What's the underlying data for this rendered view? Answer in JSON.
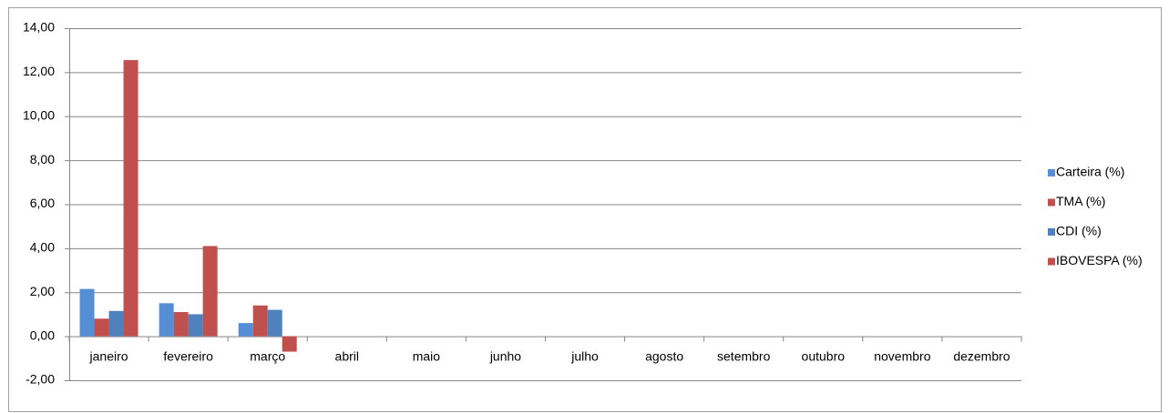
{
  "chart_data": {
    "type": "bar",
    "categories": [
      "janeiro",
      "fevereiro",
      "março",
      "abril",
      "maio",
      "junho",
      "julho",
      "agosto",
      "setembro",
      "outubro",
      "novembro",
      "dezembro"
    ],
    "series": [
      {
        "name": "Carteira (%)",
        "color": "#558ed5",
        "values": [
          2.15,
          1.5,
          0.6,
          null,
          null,
          null,
          null,
          null,
          null,
          null,
          null,
          null
        ]
      },
      {
        "name": "TMA (%)",
        "color": "#c0504d",
        "values": [
          0.8,
          1.1,
          1.4,
          null,
          null,
          null,
          null,
          null,
          null,
          null,
          null,
          null
        ]
      },
      {
        "name": "CDI (%)",
        "color": "#4f81bd",
        "values": [
          1.15,
          1.0,
          1.2,
          null,
          null,
          null,
          null,
          null,
          null,
          null,
          null,
          null
        ]
      },
      {
        "name": "IBOVESPA (%)",
        "color": "#c0504d",
        "values": [
          12.55,
          4.1,
          -0.7,
          null,
          null,
          null,
          null,
          null,
          null,
          null,
          null,
          null
        ]
      }
    ],
    "ylim": [
      -2,
      14
    ],
    "yticks": [
      {
        "value": -2,
        "label": "-2,00"
      },
      {
        "value": 0,
        "label": "0,00"
      },
      {
        "value": 2,
        "label": "2,00"
      },
      {
        "value": 4,
        "label": "4,00"
      },
      {
        "value": 6,
        "label": "6,00"
      },
      {
        "value": 8,
        "label": "8,00"
      },
      {
        "value": 10,
        "label": "10,00"
      },
      {
        "value": 12,
        "label": "12,00"
      },
      {
        "value": 14,
        "label": "14,00"
      }
    ],
    "grid": true,
    "legend": "right"
  }
}
